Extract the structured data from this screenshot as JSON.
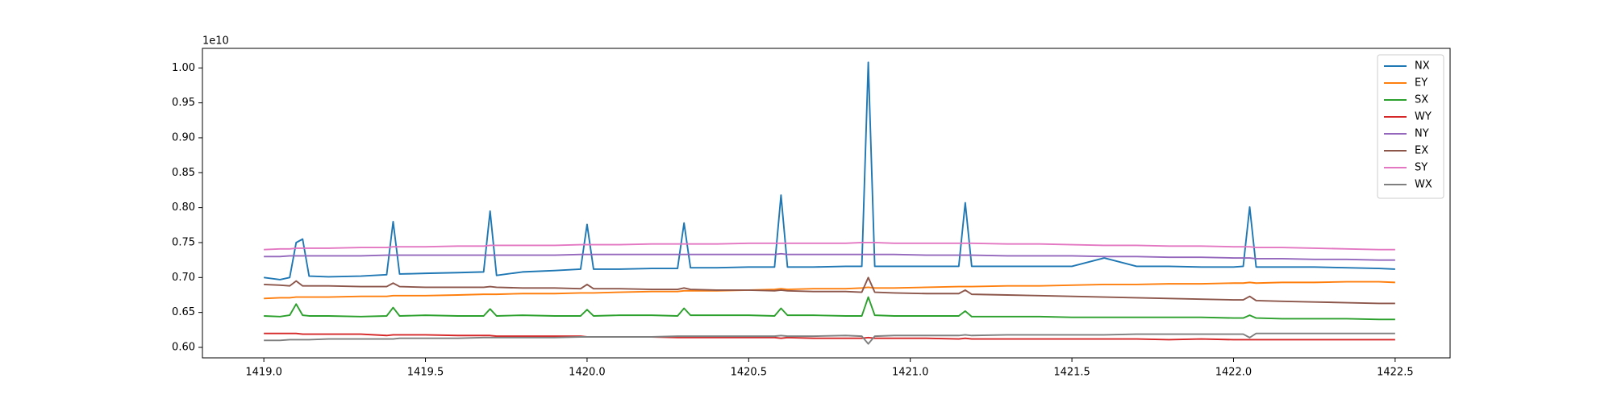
{
  "chart_data": {
    "type": "line",
    "offset_label": "1e10",
    "x": [
      1419.0,
      1419.05,
      1419.08,
      1419.1,
      1419.12,
      1419.14,
      1419.2,
      1419.3,
      1419.38,
      1419.4,
      1419.42,
      1419.5,
      1419.6,
      1419.68,
      1419.7,
      1419.72,
      1419.8,
      1419.9,
      1419.98,
      1420.0,
      1420.02,
      1420.1,
      1420.2,
      1420.28,
      1420.3,
      1420.32,
      1420.4,
      1420.5,
      1420.58,
      1420.6,
      1420.62,
      1420.7,
      1420.8,
      1420.85,
      1420.87,
      1420.89,
      1420.95,
      1421.05,
      1421.15,
      1421.17,
      1421.19,
      1421.3,
      1421.4,
      1421.5,
      1421.6,
      1421.7,
      1421.8,
      1421.9,
      1422.0,
      1422.03,
      1422.05,
      1422.07,
      1422.15,
      1422.25,
      1422.35,
      1422.45,
      1422.5
    ],
    "series": [
      {
        "name": "NX",
        "color": "#1f77b4",
        "values": [
          0.7,
          0.697,
          0.7,
          0.75,
          0.755,
          0.702,
          0.701,
          0.702,
          0.704,
          0.78,
          0.705,
          0.706,
          0.707,
          0.708,
          0.795,
          0.703,
          0.708,
          0.71,
          0.712,
          0.776,
          0.712,
          0.712,
          0.713,
          0.713,
          0.778,
          0.714,
          0.714,
          0.715,
          0.715,
          0.818,
          0.715,
          0.715,
          0.716,
          0.716,
          1.008,
          0.716,
          0.716,
          0.716,
          0.716,
          0.807,
          0.716,
          0.716,
          0.716,
          0.716,
          0.728,
          0.716,
          0.716,
          0.715,
          0.715,
          0.716,
          0.801,
          0.715,
          0.715,
          0.715,
          0.714,
          0.713,
          0.712
        ]
      },
      {
        "name": "EY",
        "color": "#ff7f0e",
        "values": [
          0.67,
          0.671,
          0.671,
          0.672,
          0.672,
          0.672,
          0.672,
          0.673,
          0.673,
          0.674,
          0.674,
          0.674,
          0.675,
          0.676,
          0.676,
          0.676,
          0.677,
          0.677,
          0.678,
          0.678,
          0.678,
          0.679,
          0.68,
          0.68,
          0.681,
          0.681,
          0.681,
          0.682,
          0.683,
          0.684,
          0.683,
          0.684,
          0.684,
          0.685,
          0.686,
          0.685,
          0.685,
          0.686,
          0.687,
          0.687,
          0.687,
          0.688,
          0.688,
          0.689,
          0.69,
          0.69,
          0.691,
          0.691,
          0.692,
          0.692,
          0.693,
          0.692,
          0.693,
          0.693,
          0.694,
          0.694,
          0.693
        ]
      },
      {
        "name": "SX",
        "color": "#2ca02c",
        "values": [
          0.645,
          0.644,
          0.646,
          0.662,
          0.646,
          0.645,
          0.645,
          0.644,
          0.645,
          0.657,
          0.645,
          0.646,
          0.645,
          0.645,
          0.655,
          0.645,
          0.646,
          0.645,
          0.645,
          0.654,
          0.645,
          0.646,
          0.646,
          0.645,
          0.656,
          0.646,
          0.646,
          0.646,
          0.645,
          0.656,
          0.646,
          0.646,
          0.645,
          0.645,
          0.672,
          0.646,
          0.645,
          0.645,
          0.645,
          0.652,
          0.644,
          0.644,
          0.644,
          0.643,
          0.643,
          0.643,
          0.643,
          0.643,
          0.642,
          0.642,
          0.646,
          0.642,
          0.641,
          0.641,
          0.641,
          0.64,
          0.64
        ]
      },
      {
        "name": "WY",
        "color": "#d62728",
        "values": [
          0.62,
          0.62,
          0.62,
          0.62,
          0.619,
          0.619,
          0.619,
          0.619,
          0.617,
          0.618,
          0.618,
          0.618,
          0.617,
          0.617,
          0.617,
          0.616,
          0.616,
          0.616,
          0.616,
          0.615,
          0.615,
          0.615,
          0.615,
          0.614,
          0.614,
          0.614,
          0.614,
          0.614,
          0.614,
          0.613,
          0.614,
          0.613,
          0.613,
          0.613,
          0.614,
          0.613,
          0.613,
          0.613,
          0.612,
          0.613,
          0.612,
          0.612,
          0.612,
          0.612,
          0.612,
          0.612,
          0.611,
          0.612,
          0.611,
          0.611,
          0.611,
          0.611,
          0.611,
          0.611,
          0.611,
          0.611,
          0.611
        ]
      },
      {
        "name": "NY",
        "color": "#9467bd",
        "values": [
          0.73,
          0.73,
          0.731,
          0.731,
          0.731,
          0.731,
          0.731,
          0.731,
          0.732,
          0.732,
          0.732,
          0.732,
          0.732,
          0.732,
          0.732,
          0.732,
          0.732,
          0.732,
          0.733,
          0.733,
          0.733,
          0.733,
          0.733,
          0.733,
          0.733,
          0.733,
          0.733,
          0.733,
          0.733,
          0.734,
          0.733,
          0.733,
          0.733,
          0.733,
          0.733,
          0.733,
          0.733,
          0.732,
          0.732,
          0.732,
          0.732,
          0.731,
          0.731,
          0.731,
          0.73,
          0.73,
          0.729,
          0.729,
          0.728,
          0.728,
          0.728,
          0.727,
          0.727,
          0.726,
          0.726,
          0.725,
          0.725
        ]
      },
      {
        "name": "EX",
        "color": "#8c564b",
        "values": [
          0.69,
          0.689,
          0.688,
          0.695,
          0.688,
          0.688,
          0.688,
          0.687,
          0.687,
          0.692,
          0.687,
          0.686,
          0.686,
          0.686,
          0.687,
          0.686,
          0.685,
          0.685,
          0.684,
          0.69,
          0.684,
          0.684,
          0.683,
          0.683,
          0.685,
          0.683,
          0.682,
          0.682,
          0.681,
          0.682,
          0.681,
          0.68,
          0.68,
          0.679,
          0.7,
          0.679,
          0.678,
          0.677,
          0.677,
          0.682,
          0.676,
          0.675,
          0.674,
          0.673,
          0.672,
          0.671,
          0.67,
          0.669,
          0.668,
          0.668,
          0.673,
          0.667,
          0.666,
          0.665,
          0.664,
          0.663,
          0.663
        ]
      },
      {
        "name": "SY",
        "color": "#e377c2",
        "values": [
          0.74,
          0.741,
          0.741,
          0.742,
          0.742,
          0.742,
          0.742,
          0.743,
          0.743,
          0.744,
          0.744,
          0.744,
          0.745,
          0.745,
          0.746,
          0.746,
          0.746,
          0.746,
          0.747,
          0.747,
          0.747,
          0.747,
          0.748,
          0.748,
          0.748,
          0.748,
          0.748,
          0.749,
          0.749,
          0.749,
          0.749,
          0.749,
          0.749,
          0.75,
          0.75,
          0.75,
          0.749,
          0.749,
          0.749,
          0.749,
          0.749,
          0.748,
          0.748,
          0.747,
          0.746,
          0.746,
          0.745,
          0.745,
          0.744,
          0.744,
          0.744,
          0.743,
          0.743,
          0.742,
          0.741,
          0.74,
          0.74
        ]
      },
      {
        "name": "WX",
        "color": "#7f7f7f",
        "values": [
          0.61,
          0.61,
          0.611,
          0.611,
          0.611,
          0.611,
          0.612,
          0.612,
          0.612,
          0.612,
          0.613,
          0.613,
          0.613,
          0.614,
          0.614,
          0.614,
          0.614,
          0.614,
          0.615,
          0.615,
          0.615,
          0.615,
          0.615,
          0.616,
          0.616,
          0.616,
          0.616,
          0.616,
          0.616,
          0.617,
          0.616,
          0.616,
          0.617,
          0.616,
          0.605,
          0.616,
          0.617,
          0.617,
          0.617,
          0.618,
          0.617,
          0.618,
          0.618,
          0.618,
          0.618,
          0.619,
          0.619,
          0.619,
          0.619,
          0.619,
          0.614,
          0.62,
          0.62,
          0.62,
          0.62,
          0.62,
          0.62
        ]
      }
    ],
    "xlim": [
      1418.81,
      1422.67
    ],
    "ylim": [
      0.585,
      1.028
    ],
    "xticks": [
      {
        "value": 1419.0,
        "label": "1419.0"
      },
      {
        "value": 1419.5,
        "label": "1419.5"
      },
      {
        "value": 1420.0,
        "label": "1420.0"
      },
      {
        "value": 1420.5,
        "label": "1420.5"
      },
      {
        "value": 1421.0,
        "label": "1421.0"
      },
      {
        "value": 1421.5,
        "label": "1421.5"
      },
      {
        "value": 1422.0,
        "label": "1422.0"
      },
      {
        "value": 1422.5,
        "label": "1422.5"
      }
    ],
    "yticks": [
      {
        "value": 0.6,
        "label": "0.60"
      },
      {
        "value": 0.65,
        "label": "0.65"
      },
      {
        "value": 0.7,
        "label": "0.70"
      },
      {
        "value": 0.75,
        "label": "0.75"
      },
      {
        "value": 0.8,
        "label": "0.80"
      },
      {
        "value": 0.85,
        "label": "0.85"
      },
      {
        "value": 0.9,
        "label": "0.90"
      },
      {
        "value": 0.95,
        "label": "0.95"
      },
      {
        "value": 1.0,
        "label": "1.00"
      }
    ],
    "grid": false,
    "legend": "upper right"
  }
}
